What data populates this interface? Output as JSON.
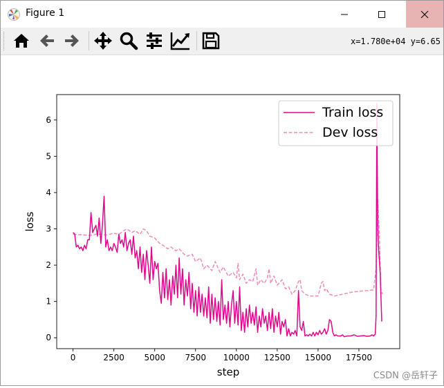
{
  "window": {
    "title": "Figure 1",
    "controls": {
      "minimize": "minimize",
      "maximize": "maximize",
      "close": "close"
    }
  },
  "toolbar": {
    "buttons": [
      {
        "name": "home-button",
        "icon": "home-icon"
      },
      {
        "name": "back-button",
        "icon": "arrow-left-icon"
      },
      {
        "name": "forward-button",
        "icon": "arrow-right-icon"
      },
      {
        "name": "pan-button",
        "icon": "move-icon"
      },
      {
        "name": "zoom-button",
        "icon": "magnifier-icon"
      },
      {
        "name": "configure-subplots-button",
        "icon": "sliders-icon"
      },
      {
        "name": "edit-axis-button",
        "icon": "line-chart-icon"
      },
      {
        "name": "save-button",
        "icon": "floppy-disk-icon"
      }
    ],
    "coordinates": "x=1.780e+04 y=6.65"
  },
  "watermark": "CSDN @岳轩子",
  "chart_data": {
    "type": "line",
    "xlabel": "step",
    "ylabel": "loss",
    "xlim": [
      -1000,
      20000
    ],
    "ylim": [
      -0.3,
      6.7
    ],
    "xticks": [
      0,
      2500,
      5000,
      7500,
      10000,
      12500,
      15000,
      17500
    ],
    "xtick_labels": [
      "0",
      "2500",
      "5000",
      "7500",
      "10000",
      "12500",
      "15000",
      "17500"
    ],
    "yticks": [
      0,
      1,
      2,
      3,
      4,
      5,
      6
    ],
    "ytick_labels": [
      "0",
      "1",
      "2",
      "3",
      "4",
      "5",
      "6"
    ],
    "legend_position": "upper-right",
    "series": [
      {
        "name": "Train loss",
        "color": "#e0068c",
        "style": "solid",
        "points": [
          [
            0,
            2.9
          ],
          [
            100,
            2.86
          ],
          [
            200,
            2.5
          ],
          [
            300,
            2.55
          ],
          [
            400,
            2.45
          ],
          [
            500,
            2.5
          ],
          [
            600,
            2.4
          ],
          [
            700,
            2.55
          ],
          [
            800,
            2.45
          ],
          [
            900,
            2.7
          ],
          [
            1000,
            2.7
          ],
          [
            1100,
            3.45
          ],
          [
            1200,
            2.9
          ],
          [
            1300,
            3.0
          ],
          [
            1400,
            3.1
          ],
          [
            1500,
            2.8
          ],
          [
            1600,
            3.3
          ],
          [
            1700,
            2.6
          ],
          [
            1800,
            3.1
          ],
          [
            1900,
            3.9
          ],
          [
            2000,
            2.5
          ],
          [
            2100,
            2.7
          ],
          [
            2200,
            2.4
          ],
          [
            2300,
            2.5
          ],
          [
            2400,
            2.4
          ],
          [
            2500,
            2.6
          ],
          [
            2600,
            2.5
          ],
          [
            2700,
            2.35
          ],
          [
            2800,
            2.85
          ],
          [
            2900,
            2.6
          ],
          [
            3000,
            2.7
          ],
          [
            3100,
            2.5
          ],
          [
            3200,
            2.9
          ],
          [
            3300,
            2.4
          ],
          [
            3400,
            2.6
          ],
          [
            3500,
            2.7
          ],
          [
            3600,
            2.3
          ],
          [
            3700,
            2.8
          ],
          [
            3800,
            2.2
          ],
          [
            3900,
            2.4
          ],
          [
            4000,
            1.9
          ],
          [
            4100,
            2.5
          ],
          [
            4200,
            1.8
          ],
          [
            4300,
            2.3
          ],
          [
            4400,
            1.6
          ],
          [
            4500,
            2.4
          ],
          [
            4600,
            2.0
          ],
          [
            4700,
            1.5
          ],
          [
            4800,
            2.5
          ],
          [
            4900,
            1.6
          ],
          [
            5000,
            2.1
          ],
          [
            5100,
            1.9
          ],
          [
            5200,
            2.05
          ],
          [
            5300,
            1.3
          ],
          [
            5400,
            0.95
          ],
          [
            5500,
            1.8
          ],
          [
            5600,
            1.1
          ],
          [
            5700,
            1.9
          ],
          [
            5800,
            1.05
          ],
          [
            5900,
            1.6
          ],
          [
            6000,
            0.9
          ],
          [
            6100,
            1.7
          ],
          [
            6200,
            1.2
          ],
          [
            6300,
            2.0
          ],
          [
            6400,
            1.1
          ],
          [
            6500,
            2.2
          ],
          [
            6600,
            1.2
          ],
          [
            6700,
            1.9
          ],
          [
            6800,
            0.9
          ],
          [
            6900,
            1.6
          ],
          [
            7000,
            1.15
          ],
          [
            7100,
            1.8
          ],
          [
            7200,
            0.8
          ],
          [
            7300,
            1.5
          ],
          [
            7400,
            0.7
          ],
          [
            7500,
            1.3
          ],
          [
            7600,
            0.6
          ],
          [
            7700,
            1.4
          ],
          [
            7800,
            0.7
          ],
          [
            7900,
            1.2
          ],
          [
            8000,
            0.6
          ],
          [
            8100,
            1.1
          ],
          [
            8200,
            0.55
          ],
          [
            8300,
            1.4
          ],
          [
            8400,
            0.4
          ],
          [
            8500,
            1.2
          ],
          [
            8600,
            0.5
          ],
          [
            8700,
            1.1
          ],
          [
            8800,
            0.45
          ],
          [
            8900,
            1.0
          ],
          [
            9000,
            0.35
          ],
          [
            9100,
            1.6
          ],
          [
            9200,
            0.5
          ],
          [
            9300,
            0.9
          ],
          [
            9400,
            0.4
          ],
          [
            9500,
            1.0
          ],
          [
            9600,
            0.3
          ],
          [
            9700,
            0.9
          ],
          [
            9800,
            1.3
          ],
          [
            9900,
            0.4
          ],
          [
            10000,
            1.0
          ],
          [
            10100,
            0.35
          ],
          [
            10200,
            1.4
          ],
          [
            10300,
            0.2
          ],
          [
            10400,
            0.7
          ],
          [
            10500,
            0.15
          ],
          [
            10600,
            0.8
          ],
          [
            10700,
            0.3
          ],
          [
            10800,
            0.9
          ],
          [
            10900,
            0.4
          ],
          [
            11000,
            0.7
          ],
          [
            11100,
            0.35
          ],
          [
            11200,
            0.85
          ],
          [
            11300,
            0.15
          ],
          [
            11400,
            0.6
          ],
          [
            11500,
            0.3
          ],
          [
            11600,
            0.8
          ],
          [
            11700,
            0.4
          ],
          [
            11800,
            0.6
          ],
          [
            11900,
            0.2
          ],
          [
            12000,
            0.7
          ],
          [
            12100,
            0.25
          ],
          [
            12200,
            0.8
          ],
          [
            12300,
            0.15
          ],
          [
            12400,
            0.6
          ],
          [
            12500,
            0.3
          ],
          [
            12600,
            0.7
          ],
          [
            12700,
            0.1
          ],
          [
            12800,
            0.45
          ],
          [
            12900,
            0.3
          ],
          [
            13000,
            0.5
          ],
          [
            13100,
            0.05
          ],
          [
            13200,
            0.25
          ],
          [
            13300,
            0.05
          ],
          [
            13400,
            0.15
          ],
          [
            13500,
            0.1
          ],
          [
            13600,
            0.2
          ],
          [
            13700,
            0.05
          ],
          [
            13800,
            1.3
          ],
          [
            13900,
            0.3
          ],
          [
            14000,
            0.2
          ],
          [
            14100,
            0.45
          ],
          [
            14200,
            0.05
          ],
          [
            14300,
            0.08
          ],
          [
            14400,
            0.05
          ],
          [
            14500,
            0.1
          ],
          [
            14600,
            0.05
          ],
          [
            14700,
            0.15
          ],
          [
            14800,
            0.05
          ],
          [
            14900,
            0.15
          ],
          [
            15000,
            0.08
          ],
          [
            15100,
            0.2
          ],
          [
            15200,
            0.1
          ],
          [
            15300,
            0.15
          ],
          [
            15400,
            0.25
          ],
          [
            15500,
            0.1
          ],
          [
            15600,
            0.2
          ],
          [
            15700,
            0.5
          ],
          [
            15800,
            0.45
          ],
          [
            15900,
            0.15
          ],
          [
            16000,
            0.05
          ],
          [
            16100,
            0.08
          ],
          [
            16200,
            0.05
          ],
          [
            16400,
            0.05
          ],
          [
            16500,
            0.08
          ],
          [
            16600,
            0.03
          ],
          [
            16800,
            0.05
          ],
          [
            17000,
            0.05
          ],
          [
            17200,
            0.08
          ],
          [
            17400,
            0.04
          ],
          [
            17600,
            0.05
          ],
          [
            17800,
            0.06
          ],
          [
            18000,
            0.04
          ],
          [
            18200,
            0.05
          ],
          [
            18300,
            0.08
          ],
          [
            18400,
            0.05
          ],
          [
            18500,
            0.1
          ],
          [
            18550,
            0.6
          ],
          [
            18600,
            6.45
          ],
          [
            18650,
            3.2
          ],
          [
            18700,
            2.5
          ],
          [
            18800,
            1.8
          ],
          [
            18900,
            0.45
          ]
        ]
      },
      {
        "name": "Dev loss",
        "color": "#f08bb6",
        "style": "dashed",
        "points": [
          [
            0,
            2.85
          ],
          [
            500,
            2.84
          ],
          [
            1000,
            2.82
          ],
          [
            1500,
            2.86
          ],
          [
            2000,
            2.83
          ],
          [
            2500,
            2.88
          ],
          [
            2800,
            2.85
          ],
          [
            3100,
            2.95
          ],
          [
            3300,
            3.0
          ],
          [
            3600,
            2.9
          ],
          [
            3800,
            2.95
          ],
          [
            4100,
            2.85
          ],
          [
            4300,
            3.0
          ],
          [
            4500,
            2.95
          ],
          [
            4700,
            2.8
          ],
          [
            5000,
            2.75
          ],
          [
            5300,
            2.6
          ],
          [
            5500,
            2.55
          ],
          [
            5800,
            2.45
          ],
          [
            6000,
            2.5
          ],
          [
            6300,
            2.4
          ],
          [
            6500,
            2.45
          ],
          [
            6800,
            2.3
          ],
          [
            7000,
            2.25
          ],
          [
            7300,
            2.3
          ],
          [
            7500,
            2.1
          ],
          [
            7800,
            2.2
          ],
          [
            8000,
            1.9
          ],
          [
            8200,
            2.0
          ],
          [
            8500,
            1.85
          ],
          [
            8700,
            2.1
          ],
          [
            9000,
            1.8
          ],
          [
            9200,
            1.95
          ],
          [
            9500,
            1.7
          ],
          [
            9800,
            1.8
          ],
          [
            10000,
            1.65
          ],
          [
            10100,
            2.05
          ],
          [
            10200,
            1.6
          ],
          [
            10400,
            1.75
          ],
          [
            10600,
            1.5
          ],
          [
            10800,
            1.6
          ],
          [
            11000,
            1.55
          ],
          [
            11200,
            1.9
          ],
          [
            11300,
            1.45
          ],
          [
            11500,
            1.6
          ],
          [
            11700,
            1.5
          ],
          [
            11900,
            1.65
          ],
          [
            12000,
            1.9
          ],
          [
            12100,
            1.5
          ],
          [
            12300,
            1.7
          ],
          [
            12500,
            1.45
          ],
          [
            12800,
            1.6
          ],
          [
            13000,
            1.35
          ],
          [
            13200,
            1.4
          ],
          [
            13400,
            1.2
          ],
          [
            13600,
            1.3
          ],
          [
            13800,
            1.55
          ],
          [
            13900,
            1.6
          ],
          [
            14000,
            1.3
          ],
          [
            14200,
            1.2
          ],
          [
            14500,
            1.15
          ],
          [
            15000,
            1.15
          ],
          [
            15200,
            1.5
          ],
          [
            15300,
            1.55
          ],
          [
            15400,
            1.3
          ],
          [
            15500,
            1.35
          ],
          [
            15700,
            1.2
          ],
          [
            16000,
            1.15
          ],
          [
            16500,
            1.2
          ],
          [
            17000,
            1.25
          ],
          [
            17500,
            1.28
          ],
          [
            18000,
            1.3
          ],
          [
            18400,
            1.32
          ],
          [
            18550,
            1.9
          ],
          [
            18650,
            3.8
          ],
          [
            18750,
            2.9
          ],
          [
            18850,
            1.3
          ],
          [
            18950,
            1.2
          ]
        ]
      }
    ]
  }
}
